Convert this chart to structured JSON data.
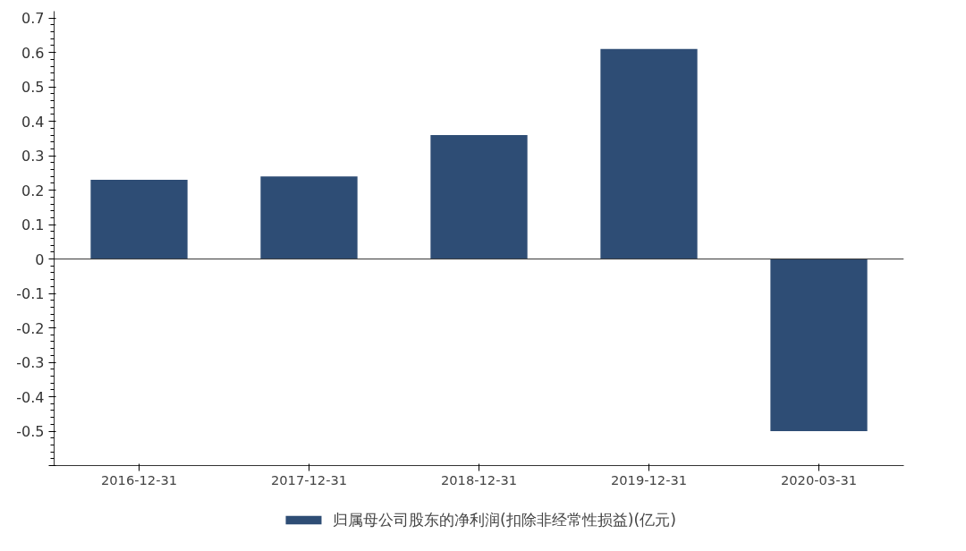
{
  "chart_data": {
    "type": "bar",
    "categories": [
      "2016-12-31",
      "2017-12-31",
      "2018-12-31",
      "2019-12-31",
      "2020-03-31"
    ],
    "series": [
      {
        "name": "归属母公司股东的净利润(扣除非经常性损益)(亿元)",
        "color": "#2e4d75",
        "values": [
          0.23,
          0.24,
          0.36,
          0.61,
          -0.5
        ]
      }
    ],
    "ylim": [
      -0.6,
      0.72
    ],
    "yticks": [
      {
        "value": -0.6,
        "label": null
      },
      -0.5,
      -0.4,
      -0.3,
      -0.2,
      -0.1,
      0,
      0.1,
      0.2,
      0.3,
      0.4,
      0.5,
      0.6,
      0.7
    ],
    "ref_lines": [
      {
        "axis": "y",
        "value": 0,
        "color": "#333333"
      }
    ],
    "grid": false,
    "legend": "bottom"
  }
}
